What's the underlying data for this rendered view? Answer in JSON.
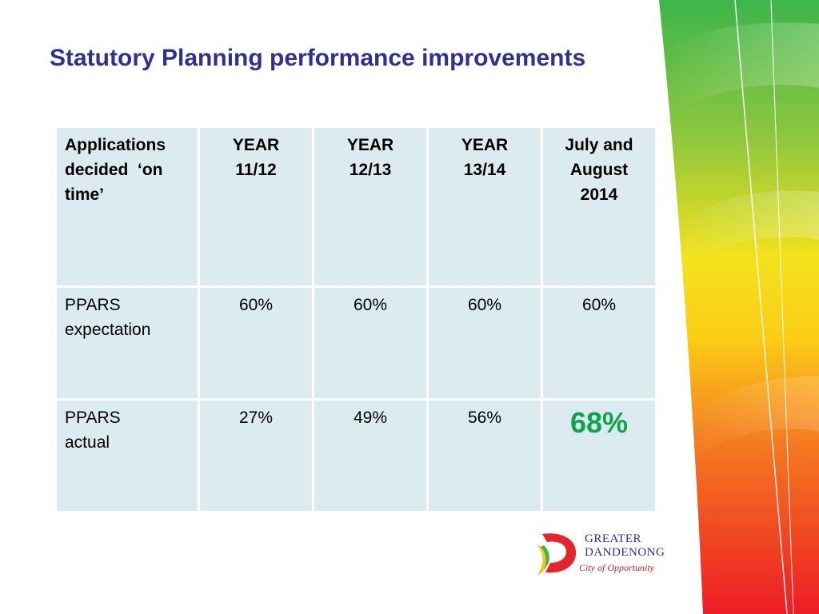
{
  "title": "Statutory Planning performance improvements",
  "table": {
    "headers": [
      "Applications decided  ‘on time’",
      "YEAR 11/12",
      "YEAR 12/13",
      "YEAR 13/14",
      "July and August 2014"
    ],
    "rows": [
      {
        "label": "PPARS expectation",
        "values": [
          "60%",
          "60%",
          "60%",
          "60%"
        ]
      },
      {
        "label": "PPARS actual",
        "values": [
          "27%",
          "49%",
          "56%",
          "68%"
        ]
      }
    ]
  },
  "logo": {
    "line1": "GREATER",
    "line2": "DANDENONG",
    "tagline": "City of Opportunity"
  },
  "colors": {
    "title": "#2e3192",
    "cell_bg": "#dcebef",
    "highlight": "#0fa34b"
  }
}
